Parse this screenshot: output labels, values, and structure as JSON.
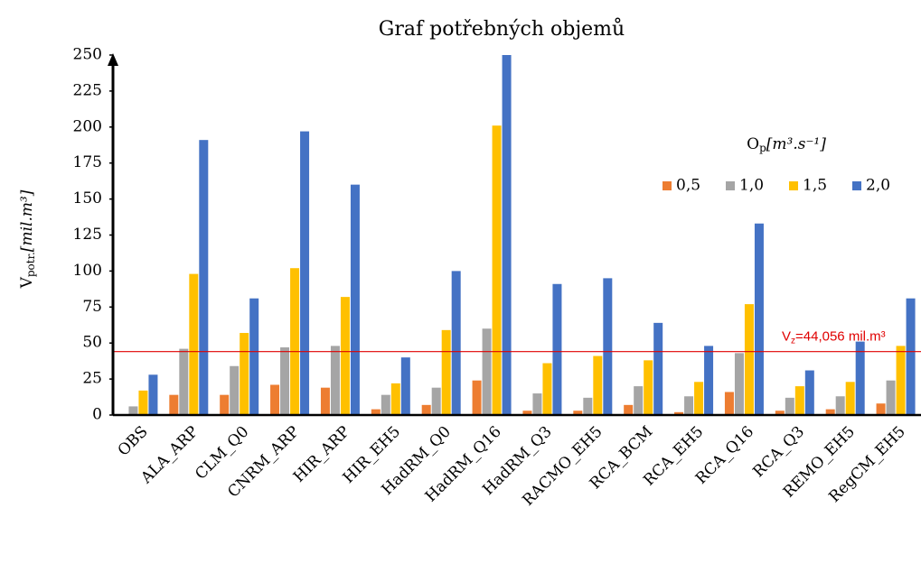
{
  "chart_data": {
    "type": "bar",
    "title": "Graf potřebných objemů",
    "y_label": [
      "V",
      "potr.",
      "[mil.m³]"
    ],
    "legend_title": [
      "O",
      "p",
      "[m³.s⁻¹]"
    ],
    "categories": [
      "OBS",
      "ALA_ARP",
      "CLM_Q0",
      "CNRM_ARP",
      "HIR_ARP",
      "HIR_EH5",
      "HadRM_Q0",
      "HadRM_Q16",
      "HadRM_Q3",
      "RACMO_EH5",
      "RCA_BCM",
      "RCA_EH5",
      "RCA_Q16",
      "RCA_Q3",
      "REMO_EH5",
      "RegCM_EH5"
    ],
    "series": [
      {
        "name": "0,5",
        "color": "#ed7d31",
        "values": [
          0,
          14,
          14,
          21,
          19,
          4,
          7,
          24,
          3,
          3,
          7,
          2,
          16,
          3,
          4,
          8
        ]
      },
      {
        "name": "1,0",
        "color": "#a5a5a5",
        "values": [
          6,
          46,
          34,
          47,
          48,
          14,
          19,
          60,
          15,
          12,
          20,
          13,
          43,
          12,
          13,
          24
        ]
      },
      {
        "name": "1,5",
        "color": "#ffc000",
        "values": [
          17,
          98,
          57,
          102,
          82,
          22,
          59,
          201,
          36,
          41,
          38,
          23,
          77,
          20,
          23,
          48
        ]
      },
      {
        "name": "2,0",
        "color": "#4472c4",
        "values": [
          28,
          191,
          81,
          197,
          160,
          40,
          100,
          250,
          91,
          95,
          64,
          48,
          133,
          31,
          51,
          81
        ]
      }
    ],
    "reference": {
      "value": 44.056,
      "color": "#e00000",
      "label": [
        "V",
        "z",
        "=44,056 mil.m³"
      ]
    },
    "ylim": [
      0,
      250
    ],
    "yticks": [
      0,
      25,
      50,
      75,
      100,
      125,
      150,
      175,
      200,
      225,
      250
    ]
  }
}
